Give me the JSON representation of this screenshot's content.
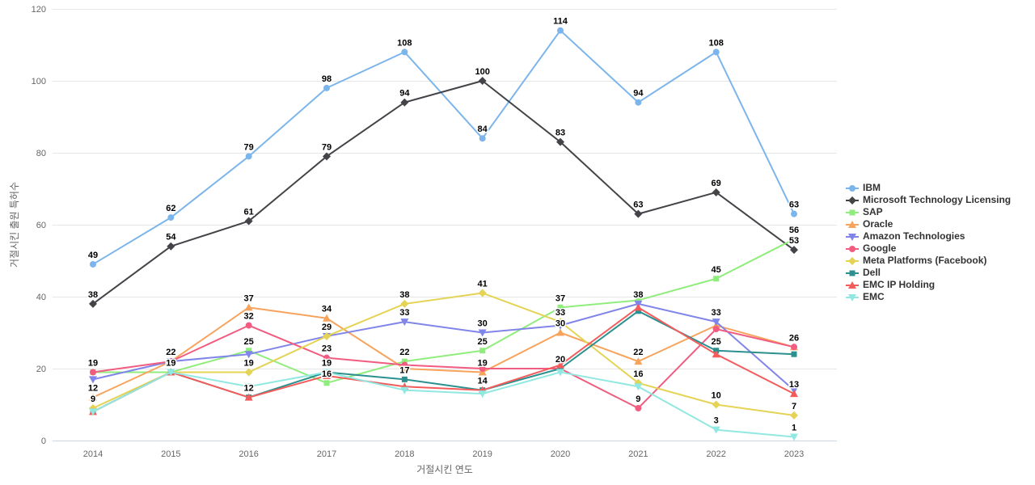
{
  "axes": {
    "x_title": "거절시킨 연도",
    "y_title": "거절시킨 출원 특허수",
    "x_categories": [
      "2014",
      "2015",
      "2016",
      "2017",
      "2018",
      "2019",
      "2020",
      "2021",
      "2022",
      "2023"
    ],
    "y_ticks": [
      0,
      20,
      40,
      60,
      80,
      100,
      120
    ],
    "y_min": 0,
    "y_max": 120,
    "grid": "horizontal",
    "tick_color": "#666666",
    "grid_color": "#e6e6e6",
    "axis_line_color": "#ccd6eb"
  },
  "legend_position": "right",
  "chart_data": {
    "type": "line",
    "x": [
      2014,
      2015,
      2016,
      2017,
      2018,
      2019,
      2020,
      2021,
      2022,
      2023
    ],
    "xlabel": "거절시킨 연도",
    "ylabel": "거절시킨 출원 특허수",
    "ylim": [
      0,
      120
    ],
    "series": [
      {
        "name": "IBM",
        "color": "#7cb5ec",
        "marker": "circle",
        "values": [
          49,
          62,
          79,
          98,
          108,
          84,
          114,
          94,
          108,
          63
        ],
        "label_visible": [
          1,
          1,
          1,
          1,
          1,
          1,
          1,
          1,
          1,
          1
        ]
      },
      {
        "name": "Microsoft Technology Licensing",
        "color": "#434348",
        "marker": "diamond",
        "values": [
          38,
          54,
          61,
          79,
          94,
          100,
          83,
          63,
          69,
          53
        ],
        "label_visible": [
          1,
          1,
          1,
          1,
          1,
          1,
          1,
          1,
          1,
          1
        ]
      },
      {
        "name": "SAP",
        "color": "#90ed7d",
        "marker": "square",
        "values": [
          19,
          19,
          25,
          16,
          22,
          25,
          37,
          39,
          45,
          56
        ],
        "label_visible": [
          0,
          0,
          1,
          1,
          1,
          1,
          1,
          0,
          1,
          1
        ]
      },
      {
        "name": "Oracle",
        "color": "#f7a35c",
        "marker": "triangle",
        "values": [
          12,
          22,
          37,
          34,
          20,
          19,
          30,
          22,
          32,
          26
        ],
        "label_visible": [
          1,
          0,
          1,
          1,
          0,
          1,
          1,
          1,
          0,
          0
        ]
      },
      {
        "name": "Amazon Technologies",
        "color": "#8085e9",
        "marker": "triangle-down",
        "values": [
          17,
          22,
          24,
          29,
          33,
          30,
          32,
          38,
          33,
          14
        ],
        "label_visible": [
          0,
          0,
          0,
          0,
          1,
          1,
          0,
          1,
          1,
          0
        ]
      },
      {
        "name": "Google",
        "color": "#f15c80",
        "marker": "circle",
        "values": [
          19,
          22,
          32,
          23,
          21,
          20,
          20,
          9,
          31,
          26
        ],
        "label_visible": [
          1,
          1,
          1,
          1,
          0,
          0,
          1,
          1,
          0,
          1
        ]
      },
      {
        "name": "Meta Platforms (Facebook)",
        "color": "#e4d354",
        "marker": "diamond",
        "values": [
          9,
          19,
          19,
          29,
          38,
          41,
          33,
          16,
          10,
          7
        ],
        "label_visible": [
          1,
          0,
          1,
          1,
          1,
          1,
          1,
          1,
          1,
          1
        ]
      },
      {
        "name": "Dell",
        "color": "#2b908f",
        "marker": "square",
        "values": [
          8,
          19,
          12,
          19,
          17,
          14,
          20,
          36,
          25,
          24
        ],
        "label_visible": [
          0,
          1,
          1,
          1,
          1,
          1,
          0,
          0,
          1,
          0
        ]
      },
      {
        "name": "EMC IP Holding",
        "color": "#f45b5b",
        "marker": "triangle",
        "values": [
          8,
          19,
          12,
          18,
          15,
          14,
          21,
          37,
          24,
          13
        ],
        "label_visible": [
          0,
          0,
          0,
          0,
          0,
          0,
          0,
          0,
          0,
          1
        ]
      },
      {
        "name": "EMC",
        "color": "#91e8e1",
        "marker": "triangle-down",
        "values": [
          8,
          19,
          15,
          19,
          14,
          13,
          19,
          15,
          3,
          1
        ],
        "label_visible": [
          0,
          0,
          0,
          0,
          0,
          0,
          0,
          0,
          1,
          1
        ]
      }
    ]
  }
}
